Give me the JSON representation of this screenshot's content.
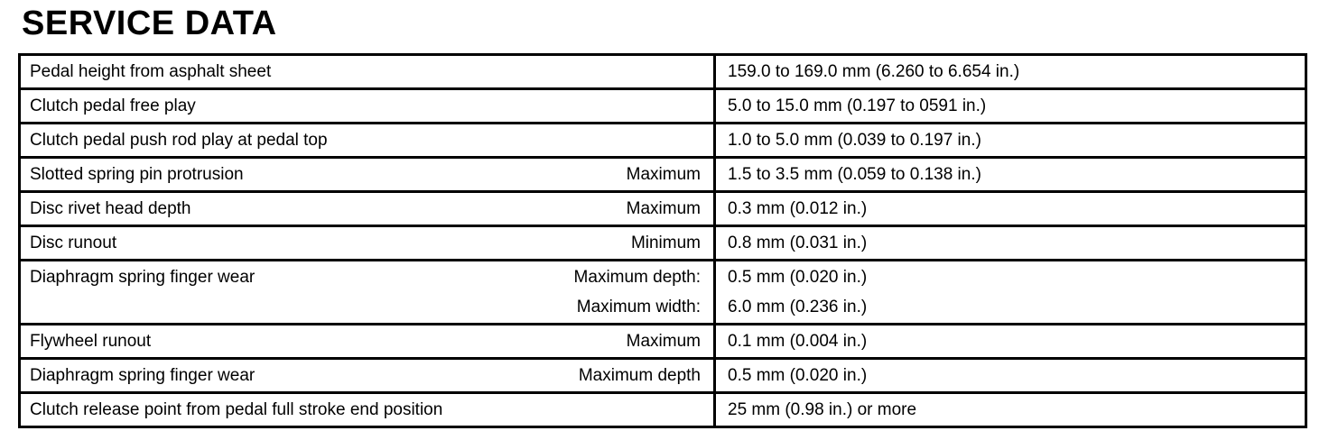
{
  "page_title": "SERVICE DATA",
  "colors": {
    "background": "#ffffff",
    "border": "#000000",
    "text": "#000000"
  },
  "table": {
    "rows": [
      {
        "label": "Pedal height from asphalt sheet",
        "qualifiers": [],
        "values": [
          "159.0 to 169.0 mm (6.260 to 6.654 in.)"
        ]
      },
      {
        "label": "Clutch pedal free play",
        "qualifiers": [],
        "values": [
          "5.0 to 15.0 mm (0.197 to 0591 in.)"
        ]
      },
      {
        "label": "Clutch pedal push rod play at pedal top",
        "qualifiers": [],
        "values": [
          "1.0 to 5.0 mm (0.039 to 0.197 in.)"
        ]
      },
      {
        "label": "Slotted spring pin protrusion",
        "qualifiers": [
          "Maximum"
        ],
        "values": [
          "1.5 to 3.5 mm (0.059 to 0.138 in.)"
        ]
      },
      {
        "label": "Disc rivet head depth",
        "qualifiers": [
          "Maximum"
        ],
        "values": [
          "0.3 mm (0.012 in.)"
        ]
      },
      {
        "label": "Disc runout",
        "qualifiers": [
          "Minimum"
        ],
        "values": [
          "0.8 mm (0.031 in.)"
        ]
      },
      {
        "label": "Diaphragm spring finger wear",
        "qualifiers": [
          "Maximum depth:",
          "Maximum width:"
        ],
        "values": [
          "0.5 mm (0.020 in.)",
          "6.0 mm (0.236 in.)"
        ]
      },
      {
        "label": "Flywheel runout",
        "qualifiers": [
          "Maximum"
        ],
        "values": [
          "0.1 mm (0.004 in.)"
        ]
      },
      {
        "label": "Diaphragm spring finger wear",
        "qualifiers": [
          "Maximum depth"
        ],
        "values": [
          "0.5 mm (0.020 in.)"
        ]
      },
      {
        "label": "Clutch release point from pedal full stroke end position",
        "qualifiers": [],
        "values": [
          "25 mm (0.98 in.) or more"
        ]
      }
    ]
  }
}
